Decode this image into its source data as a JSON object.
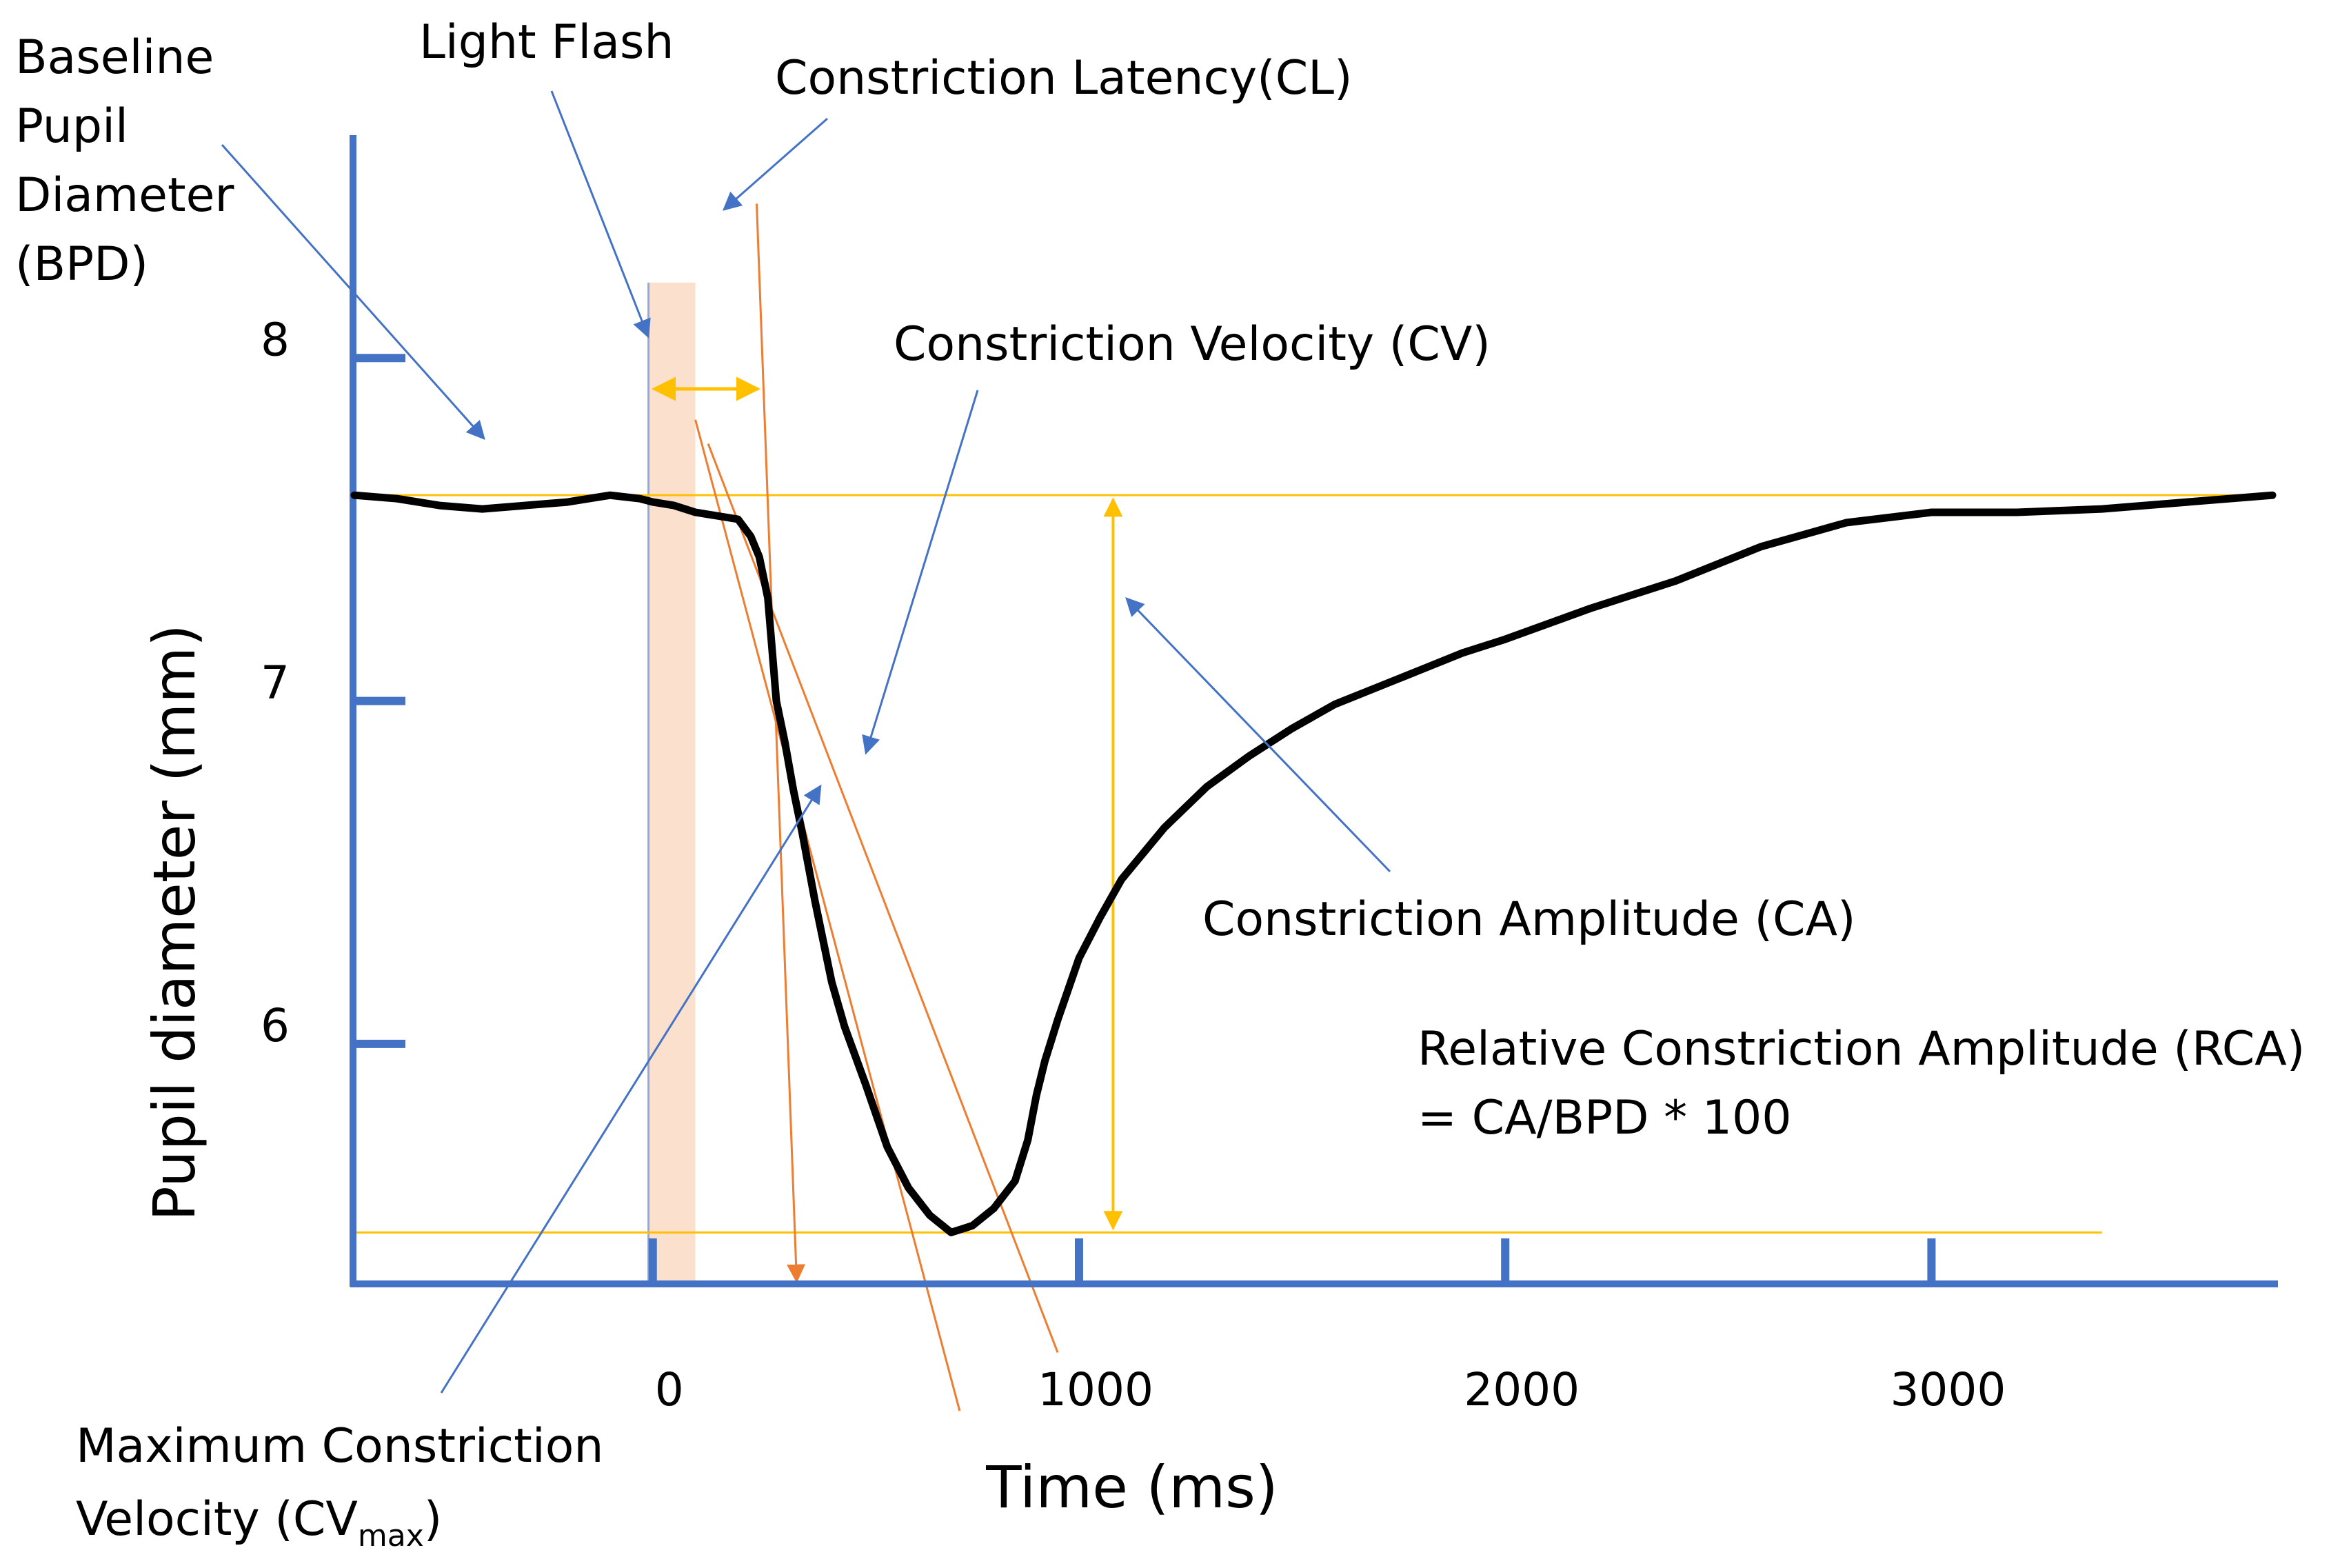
{
  "colors": {
    "axis": "#4472C4",
    "curve": "#000000",
    "flash_band": "#F8CBAD",
    "amplitude": "#FFC000",
    "latency_lines": "#ED7D31",
    "callout_lines": "#4472C4"
  },
  "chart_data": {
    "type": "line",
    "title": "",
    "xlabel": "Time (ms)",
    "ylabel": "Pupil diameter (mm)",
    "xlim": [
      -700,
      3800
    ],
    "ylim": [
      5.3,
      8.65
    ],
    "x_ticks": [
      {
        "value": 0,
        "label": "0"
      },
      {
        "value": 1000,
        "label": "1000"
      },
      {
        "value": 2000,
        "label": "2000"
      },
      {
        "value": 3000,
        "label": "3000"
      }
    ],
    "y_ticks": [
      {
        "value": 8,
        "label": "8"
      },
      {
        "value": 7,
        "label": "7"
      },
      {
        "value": 6,
        "label": "6"
      }
    ],
    "light_flash_window": [
      -10,
      100
    ],
    "baseline_diameter": 7.6,
    "minimum_diameter": 5.45,
    "constriction_onset_ms": 260,
    "series": [
      {
        "name": "Pupil diameter",
        "x": [
          -700,
          -600,
          -500,
          -400,
          -300,
          -200,
          -100,
          -30,
          0,
          50,
          100,
          150,
          200,
          230,
          250,
          270,
          290,
          310,
          330,
          350,
          380,
          400,
          420,
          450,
          500,
          550,
          600,
          650,
          700,
          750,
          800,
          850,
          880,
          900,
          920,
          950,
          1000,
          1050,
          1100,
          1200,
          1300,
          1400,
          1500,
          1600,
          1700,
          1800,
          1900,
          2000,
          2200,
          2400,
          2600,
          2800,
          3000,
          3200,
          3400,
          3600,
          3800
        ],
        "y": [
          7.6,
          7.59,
          7.57,
          7.56,
          7.57,
          7.58,
          7.6,
          7.59,
          7.58,
          7.57,
          7.55,
          7.54,
          7.53,
          7.48,
          7.42,
          7.3,
          7.0,
          6.88,
          6.74,
          6.62,
          6.42,
          6.3,
          6.18,
          6.05,
          5.88,
          5.7,
          5.58,
          5.5,
          5.45,
          5.47,
          5.52,
          5.6,
          5.72,
          5.85,
          5.95,
          6.07,
          6.25,
          6.37,
          6.48,
          6.63,
          6.75,
          6.84,
          6.92,
          6.99,
          7.04,
          7.09,
          7.14,
          7.18,
          7.27,
          7.35,
          7.45,
          7.52,
          7.55,
          7.55,
          7.56,
          7.58,
          7.6
        ]
      }
    ],
    "annotations": {
      "baseline": "Baseline Pupil Diameter (BPD)",
      "light_flash": "Light Flash",
      "latency": "Constriction Latency(CL)",
      "velocity": "Constriction Velocity (CV)",
      "amplitude": "Constriction Amplitude (CA)",
      "relative_amplitude": "Relative Constriction Amplitude (RCA)",
      "relative_formula": "= CA/BPD * 100",
      "max_velocity": "Maximum Constriction Velocity (CVmax)"
    }
  },
  "labels": {
    "baseline_lines": [
      "Baseline",
      "Pupil",
      "Diameter",
      "(BPD)"
    ],
    "light_flash": "Light Flash",
    "latency": "Constriction Latency(CL)",
    "velocity": "Constriction Velocity (CV)",
    "amplitude": "Constriction Amplitude (CA)",
    "rca_line1": "Relative Constriction Amplitude (RCA)",
    "rca_line2": "= CA/BPD * 100",
    "max_velocity_line1": "Maximum Constriction",
    "max_velocity_line2_prefix": "Velocity (CV",
    "max_velocity_sub": "max",
    "max_velocity_line2_suffix": ")"
  }
}
